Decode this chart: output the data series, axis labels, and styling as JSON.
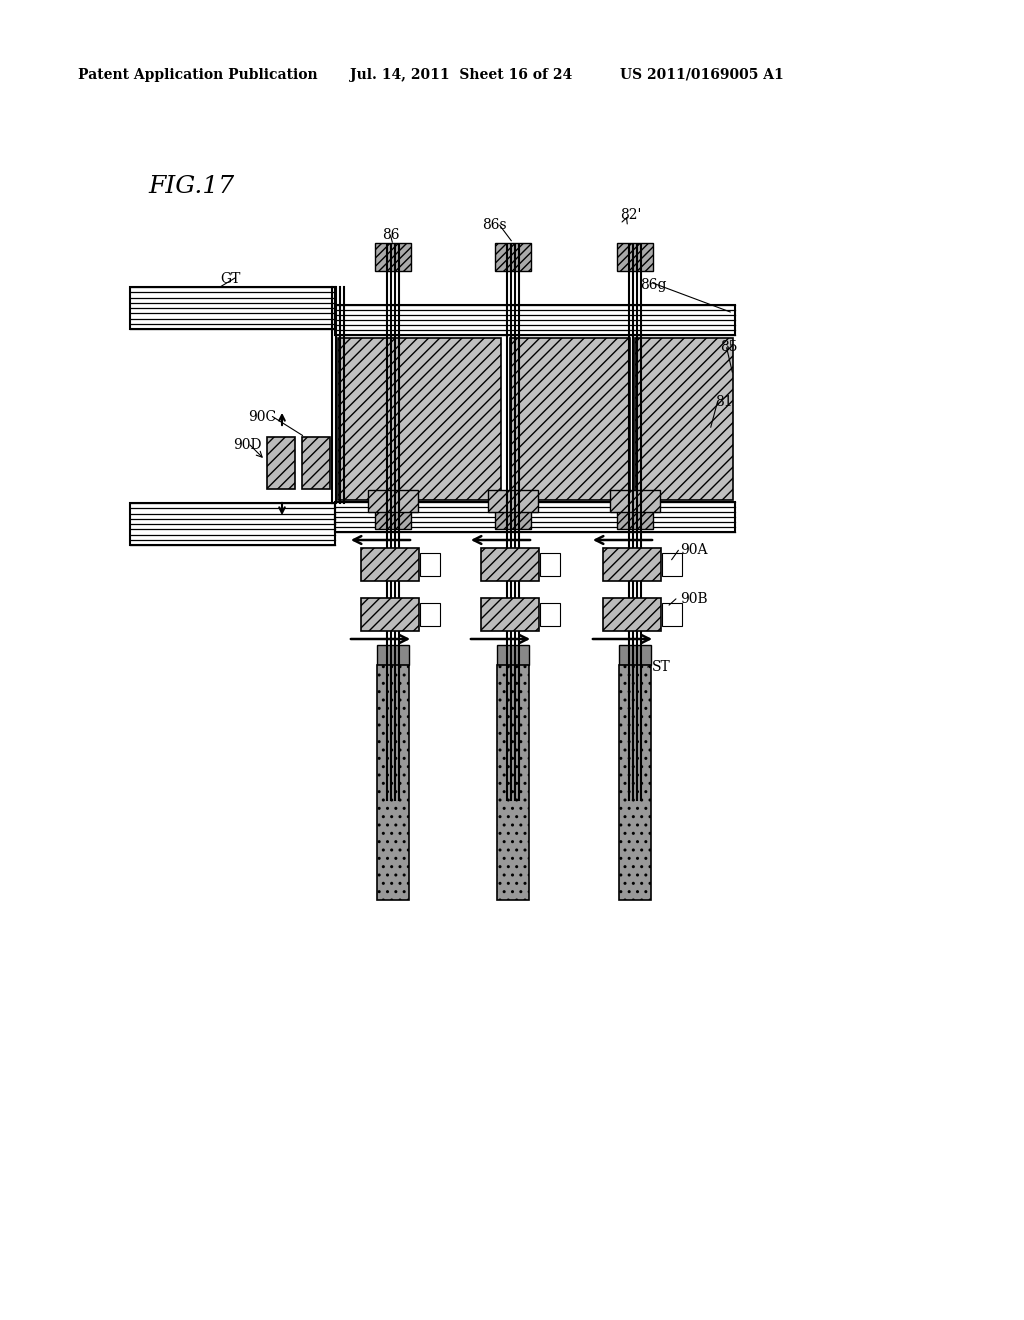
{
  "header_left": "Patent Application Publication",
  "header_mid": "Jul. 14, 2011  Sheet 16 of 24",
  "header_right": "US 2011/0169005 A1",
  "title": "FIG.17",
  "bg_color": "#ffffff",
  "fig_width": 10.24,
  "fig_height": 13.2,
  "dpi": 100
}
